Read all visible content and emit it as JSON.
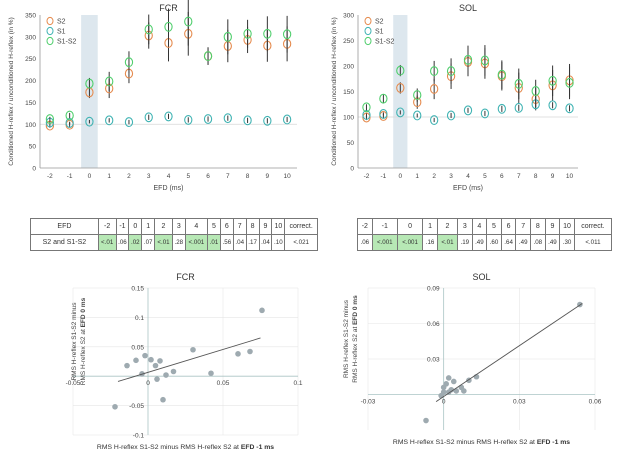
{
  "colors": {
    "S2": "#e58a4d",
    "S1": "#3fb3b3",
    "S1S2": "#4fce6c",
    "highlight": "#dde7ee",
    "significant": "#b7e8b5",
    "scatter": "#9eaab0"
  },
  "table_fcr": {
    "header": [
      "EFD",
      "-2",
      "-1",
      "0",
      "1",
      "2",
      "3",
      "4",
      "5",
      "6",
      "7",
      "8",
      "9",
      "10",
      "correct."
    ],
    "row_label": "S2 and S1-S2",
    "cells": [
      "<.01",
      ".06",
      ".02",
      ".07",
      "<.01",
      ".28",
      "<.001",
      ".01",
      ".56",
      ".04",
      ".17",
      ".04",
      ".10",
      "<.021"
    ],
    "significant": [
      true,
      false,
      true,
      false,
      true,
      false,
      true,
      true,
      false,
      false,
      false,
      false,
      false,
      false
    ]
  },
  "table_sol": {
    "header": [
      "-2",
      "-1",
      "0",
      "1",
      "2",
      "3",
      "4",
      "5",
      "6",
      "7",
      "8",
      "9",
      "10",
      "correct."
    ],
    "cells": [
      ".06",
      "<.001",
      "<.001",
      ".16",
      "<.01",
      ".19",
      ".49",
      ".60",
      ".64",
      ".49",
      ".08",
      ".49",
      ".30",
      "<.011"
    ],
    "significant": [
      false,
      true,
      true,
      false,
      true,
      false,
      false,
      false,
      false,
      false,
      false,
      false,
      false,
      false
    ]
  },
  "chart_data": [
    {
      "type": "scatter",
      "title": "FCR",
      "ylabel": "Conditioned H-reflex / unconditioned H-reflex (in %)",
      "xlabel": "EFD (ms)",
      "categories": [
        "-2",
        "-1",
        "0",
        "1",
        "2",
        "3",
        "4",
        "5",
        "6",
        "7",
        "8",
        "9",
        "10"
      ],
      "ylim": [
        0,
        350
      ],
      "yticks": [
        "0",
        "50",
        "100",
        "150",
        "200",
        "250",
        "300",
        "350"
      ],
      "highlight_category": "0",
      "legend": [
        "S2",
        "S1",
        "S1-S2"
      ],
      "legend_position": "top-left",
      "series": [
        {
          "name": "S2",
          "values": [
            97,
            99,
            173,
            182,
            216,
            303,
            286,
            307,
            256,
            279,
            293,
            280,
            284
          ],
          "err": [
            5,
            5,
            13,
            22,
            22,
            30,
            42,
            50,
            20,
            37,
            30,
            37,
            40
          ]
        },
        {
          "name": "S1",
          "values": [
            104,
            103,
            106,
            109,
            105,
            116,
            118,
            110,
            112,
            114,
            109,
            108,
            111
          ],
          "err": [
            3,
            3,
            4,
            5,
            5,
            6,
            6,
            6,
            6,
            6,
            6,
            6,
            6
          ]
        },
        {
          "name": "S1-S2",
          "values": [
            112,
            120,
            193,
            198,
            242,
            317,
            323,
            335,
            256,
            300,
            307,
            307,
            306
          ],
          "err": [
            5,
            6,
            13,
            22,
            25,
            34,
            42,
            55,
            20,
            40,
            32,
            40,
            42
          ]
        }
      ]
    },
    {
      "type": "scatter",
      "title": "SOL",
      "ylabel": "Conditioned H-reflex / unconditioned H-reflex (in %)",
      "xlabel": "EFD (ms)",
      "categories": [
        "-2",
        "-1",
        "0",
        "1",
        "2",
        "3",
        "4",
        "5",
        "6",
        "7",
        "8",
        "9",
        "10"
      ],
      "ylim": [
        0,
        300
      ],
      "yticks": [
        "0",
        "50",
        "100",
        "150",
        "200",
        "250",
        "300"
      ],
      "highlight_category": "0",
      "legend": [
        "S2",
        "S1",
        "S1-S2"
      ],
      "legend_position": "top-left",
      "series": [
        {
          "name": "S2",
          "values": [
            99,
            102,
            157,
            129,
            155,
            180,
            208,
            205,
            180,
            157,
            135,
            162,
            172
          ],
          "err": [
            5,
            5,
            11,
            13,
            20,
            25,
            28,
            30,
            28,
            30,
            22,
            30,
            32
          ]
        },
        {
          "name": "S1",
          "values": [
            104,
            106,
            109,
            103,
            94,
            103,
            113,
            107,
            116,
            118,
            125,
            123,
            117
          ],
          "err": [
            3,
            3,
            4,
            4,
            4,
            5,
            5,
            5,
            6,
            6,
            6,
            6,
            6
          ]
        },
        {
          "name": "S1-S2",
          "values": [
            119,
            136,
            191,
            143,
            190,
            190,
            212,
            211,
            183,
            165,
            151,
            171,
            167
          ],
          "err": [
            6,
            8,
            11,
            13,
            20,
            25,
            28,
            30,
            28,
            30,
            22,
            30,
            32
          ]
        }
      ]
    },
    {
      "type": "scatter",
      "title": "FCR",
      "xlabel_prefix": "RMS H-reflex S1-S2 minus RMS H-reflex S2 at ",
      "xlabel_bold": "EFD -1 ms",
      "ylabel_line1": "RMS H-reflex S1-S2 minus",
      "ylabel_line2_prefix": "RMS H-reflex S2 at ",
      "ylabel_line2_bold": "EFD 0 ms",
      "xlim": [
        -0.05,
        0.1
      ],
      "ylim": [
        -0.1,
        0.15
      ],
      "xticks": [
        "-0.05",
        "0",
        "0.05",
        "0.1"
      ],
      "yticks": [
        "-0.1",
        "-0.05",
        "0.05",
        "0.1",
        "0.15"
      ],
      "points": [
        [
          -0.022,
          -0.052
        ],
        [
          -0.014,
          0.018
        ],
        [
          -0.008,
          0.027
        ],
        [
          -0.004,
          0.004
        ],
        [
          -0.002,
          0.035
        ],
        [
          0.002,
          0.028
        ],
        [
          0.005,
          0.018
        ],
        [
          0.006,
          -0.005
        ],
        [
          0.008,
          0.026
        ],
        [
          0.01,
          -0.04
        ],
        [
          0.012,
          0.002
        ],
        [
          0.017,
          0.008
        ],
        [
          0.03,
          0.045
        ],
        [
          0.042,
          0.005
        ],
        [
          0.06,
          0.038
        ],
        [
          0.068,
          0.042
        ],
        [
          0.076,
          0.112
        ]
      ],
      "trendline": [
        [
          -0.02,
          -0.009
        ],
        [
          0.075,
          0.065
        ]
      ]
    },
    {
      "type": "scatter",
      "title": "SOL",
      "xlabel_prefix": "RMS H-reflex S1-S2 minus RMS H-reflex S2 at ",
      "xlabel_bold": "EFD -1 ms",
      "ylabel_line1": "RMS H-reflex S1-S2 minus",
      "ylabel_line2_prefix": "RMS H-reflex S2 at ",
      "ylabel_line2_bold": "EFD 0 ms",
      "xlim": [
        -0.03,
        0.06
      ],
      "ylim": [
        -0.03,
        0.09
      ],
      "xticks": [
        "-0.03",
        "0",
        "0.03",
        "0.06"
      ],
      "yticks": [
        "0.03",
        "0.06",
        "0.09"
      ],
      "points": [
        [
          -0.007,
          -0.022
        ],
        [
          -0.001,
          -0.001
        ],
        [
          0.0,
          0.002
        ],
        [
          0.0,
          0.006
        ],
        [
          0.001,
          0.009
        ],
        [
          0.002,
          0.014
        ],
        [
          0.002,
          0.002
        ],
        [
          0.003,
          0.004
        ],
        [
          0.004,
          0.011
        ],
        [
          0.005,
          0.003
        ],
        [
          0.007,
          0.006
        ],
        [
          0.008,
          0.003
        ],
        [
          0.01,
          0.012
        ],
        [
          0.013,
          0.015
        ],
        [
          0.054,
          0.076
        ]
      ],
      "trendline": [
        [
          -0.003,
          -0.006
        ],
        [
          0.055,
          0.077
        ]
      ]
    }
  ]
}
